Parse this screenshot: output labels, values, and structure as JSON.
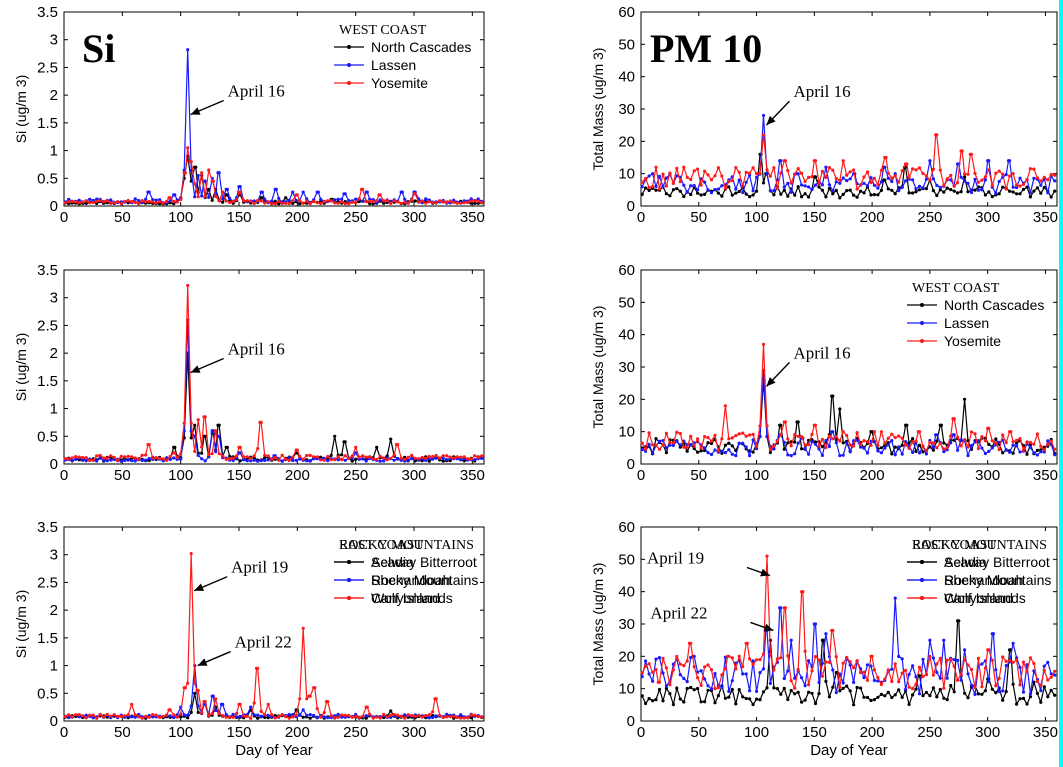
{
  "figure": {
    "big_labels": [
      "Si",
      "PM 10"
    ],
    "colors": {
      "black": "#000000",
      "blue": "#1a1aff",
      "red": "#ff1a1a",
      "arrow": "#000000"
    }
  },
  "chart_data": [
    {
      "type": "line",
      "big_label": "Si",
      "legend_title": "WEST COAST",
      "ylabel": "Si (ug/m 3)",
      "xlabel": "",
      "xlim": [
        0,
        360
      ],
      "ylim": [
        0,
        3.5
      ],
      "xticks": [
        0,
        50,
        100,
        150,
        200,
        250,
        300,
        350
      ],
      "yticks": [
        0,
        0.5,
        1,
        1.5,
        2,
        2.5,
        3,
        3.5
      ],
      "annotations": [
        {
          "text": "April 16",
          "x": 106,
          "y": 1.65
        }
      ],
      "series": [
        {
          "name": "North Cascades",
          "color": "#000000",
          "base": 0.04,
          "noise": 0.05,
          "peaks": [
            [
              103,
              0.5
            ],
            [
              106,
              0.9
            ],
            [
              109,
              0.45
            ],
            [
              113,
              0.7
            ],
            [
              118,
              0.55
            ],
            [
              124,
              0.3
            ],
            [
              130,
              0.3
            ],
            [
              140,
              0.2
            ],
            [
              150,
              0.2
            ],
            [
              170,
              0.15
            ],
            [
              190,
              0.15
            ],
            [
              230,
              0.12
            ]
          ]
        },
        {
          "name": "Lassen",
          "color": "#1a1aff",
          "base": 0.05,
          "noise": 0.08,
          "peaks": [
            [
              72,
              0.25
            ],
            [
              95,
              0.2
            ],
            [
              106,
              2.82
            ],
            [
              109,
              0.5
            ],
            [
              115,
              0.55
            ],
            [
              120,
              0.45
            ],
            [
              127,
              0.5
            ],
            [
              132,
              0.6
            ],
            [
              140,
              0.3
            ],
            [
              150,
              0.35
            ],
            [
              170,
              0.25
            ],
            [
              182,
              0.3
            ],
            [
              196,
              0.25
            ],
            [
              205,
              0.25
            ],
            [
              218,
              0.25
            ],
            [
              240,
              0.22
            ],
            [
              260,
              0.25
            ],
            [
              290,
              0.25
            ],
            [
              300,
              0.25
            ]
          ]
        },
        {
          "name": "Yosemite",
          "color": "#ff1a1a",
          "base": 0.04,
          "noise": 0.06,
          "peaks": [
            [
              90,
              0.15
            ],
            [
              104,
              0.6
            ],
            [
              106,
              1.05
            ],
            [
              108,
              0.8
            ],
            [
              112,
              0.4
            ],
            [
              118,
              0.6
            ],
            [
              124,
              0.65
            ],
            [
              128,
              0.45
            ],
            [
              136,
              0.25
            ],
            [
              150,
              0.25
            ],
            [
              200,
              0.2
            ],
            [
              255,
              0.3
            ],
            [
              270,
              0.2
            ],
            [
              300,
              0.22
            ]
          ]
        }
      ]
    },
    {
      "type": "line",
      "big_label": "PM 10",
      "legend_title": "WEST COAST",
      "ylabel": "Total Mass (ug/m 3)",
      "xlabel": "",
      "xlim": [
        0,
        360
      ],
      "ylim": [
        0,
        60
      ],
      "xticks": [
        0,
        50,
        100,
        150,
        200,
        250,
        300,
        350
      ],
      "yticks": [
        0,
        10,
        20,
        30,
        40,
        50,
        60
      ],
      "annotations": [
        {
          "text": "April 16",
          "x": 106,
          "y": 25
        }
      ],
      "series": [
        {
          "name": "North Cascades",
          "color": "#000000",
          "base": 2.5,
          "noise": 3.5,
          "peaks": [
            [
              104,
              16
            ],
            [
              108,
              10
            ],
            [
              150,
              9
            ],
            [
              210,
              8
            ],
            [
              228,
              12
            ],
            [
              250,
              8
            ],
            [
              280,
              9
            ]
          ]
        },
        {
          "name": "Lassen",
          "color": "#1a1aff",
          "base": 4,
          "noise": 6,
          "peaks": [
            [
              106,
              28
            ],
            [
              120,
              14
            ],
            [
              135,
              10
            ],
            [
              160,
              12
            ],
            [
              185,
              10
            ],
            [
              210,
              12
            ],
            [
              250,
              14
            ],
            [
              275,
              13
            ],
            [
              300,
              14
            ],
            [
              318,
              14
            ]
          ]
        },
        {
          "name": "Yosemite",
          "color": "#ff1a1a",
          "base": 5,
          "noise": 7,
          "peaks": [
            [
              37,
              12
            ],
            [
              100,
              10
            ],
            [
              106,
              22
            ],
            [
              125,
              14
            ],
            [
              150,
              14
            ],
            [
              175,
              14
            ],
            [
              212,
              15
            ],
            [
              230,
              13
            ],
            [
              255,
              22
            ],
            [
              278,
              17
            ],
            [
              285,
              16
            ]
          ]
        }
      ]
    },
    {
      "type": "line",
      "big_label": "",
      "legend_title": "ROCKY MOUNTAINS",
      "ylabel": "Si (ug/m 3)",
      "xlabel": "",
      "xlim": [
        0,
        360
      ],
      "ylim": [
        0,
        3.5
      ],
      "xticks": [
        0,
        50,
        100,
        150,
        200,
        250,
        300,
        350
      ],
      "yticks": [
        0,
        0.5,
        1,
        1.5,
        2,
        2.5,
        3,
        3.5
      ],
      "annotations": [
        {
          "text": "April 16",
          "x": 106,
          "y": 1.65
        }
      ],
      "series": [
        {
          "name": "Selway Bitterroot",
          "color": "#000000",
          "base": 0.05,
          "noise": 0.08,
          "peaks": [
            [
              95,
              0.3
            ],
            [
              106,
              2.0
            ],
            [
              112,
              0.7
            ],
            [
              120,
              0.5
            ],
            [
              128,
              0.55
            ],
            [
              132,
              0.7
            ],
            [
              140,
              0.3
            ],
            [
              200,
              0.2
            ],
            [
              232,
              0.5
            ],
            [
              240,
              0.4
            ],
            [
              268,
              0.3
            ],
            [
              280,
              0.45
            ]
          ]
        },
        {
          "name": "Rocky Mountains",
          "color": "#1a1aff",
          "base": 0.05,
          "noise": 0.06,
          "peaks": [
            [
              106,
              2.6
            ],
            [
              112,
              0.5
            ],
            [
              128,
              0.6
            ],
            [
              132,
              0.5
            ],
            [
              150,
              0.2
            ],
            [
              180,
              0.15
            ],
            [
              250,
              0.2
            ]
          ]
        },
        {
          "name": "Canyonlands",
          "color": "#ff1a1a",
          "base": 0.06,
          "noise": 0.1,
          "peaks": [
            [
              72,
              0.35
            ],
            [
              95,
              0.2
            ],
            [
              103,
              0.6
            ],
            [
              106,
              3.22
            ],
            [
              109,
              0.6
            ],
            [
              115,
              0.8
            ],
            [
              120,
              0.85
            ],
            [
              130,
              0.6
            ],
            [
              150,
              0.3
            ],
            [
              168,
              0.75
            ],
            [
              200,
              0.25
            ],
            [
              250,
              0.3
            ],
            [
              285,
              0.35
            ]
          ]
        }
      ]
    },
    {
      "type": "line",
      "big_label": "",
      "legend_title": "ROCKY MOUNTAINS",
      "ylabel": "Total Mass (ug/m 3)",
      "xlabel": "",
      "xlim": [
        0,
        360
      ],
      "ylim": [
        0,
        60
      ],
      "xticks": [
        0,
        50,
        100,
        150,
        200,
        250,
        300,
        350
      ],
      "yticks": [
        0,
        10,
        20,
        30,
        40,
        50,
        60
      ],
      "annotations": [
        {
          "text": "April 16",
          "x": 106,
          "y": 24
        }
      ],
      "series": [
        {
          "name": "Selway Bitterroot",
          "color": "#000000",
          "base": 3,
          "noise": 5,
          "peaks": [
            [
              106,
              26
            ],
            [
              120,
              12
            ],
            [
              135,
              13
            ],
            [
              165,
              21
            ],
            [
              172,
              17
            ],
            [
              200,
              10
            ],
            [
              230,
              12
            ],
            [
              260,
              12
            ],
            [
              280,
              20
            ],
            [
              295,
              8
            ]
          ]
        },
        {
          "name": "Rocky Mountains",
          "color": "#1a1aff",
          "base": 2.5,
          "noise": 5,
          "peaks": [
            [
              106,
              29
            ],
            [
              120,
              9
            ],
            [
              140,
              8
            ],
            [
              165,
              10
            ],
            [
              200,
              7
            ],
            [
              255,
              9
            ],
            [
              270,
              9
            ]
          ]
        },
        {
          "name": "Canyonlands",
          "color": "#ff1a1a",
          "base": 4,
          "noise": 6,
          "peaks": [
            [
              73,
              18
            ],
            [
              106,
              37
            ],
            [
              125,
              13
            ],
            [
              150,
              12
            ],
            [
              175,
              10
            ],
            [
              240,
              10
            ],
            [
              270,
              14
            ],
            [
              300,
              11
            ],
            [
              320,
              10
            ]
          ]
        }
      ]
    },
    {
      "type": "line",
      "big_label": "",
      "legend_title": "EAST COAST",
      "ylabel": "Si (ug/m 3)",
      "xlabel": "Day of Year",
      "xlim": [
        0,
        360
      ],
      "ylim": [
        0,
        3.5
      ],
      "xticks": [
        0,
        50,
        100,
        150,
        200,
        250,
        300,
        350
      ],
      "yticks": [
        0,
        0.5,
        1,
        1.5,
        2,
        2.5,
        3,
        3.5
      ],
      "annotations": [
        {
          "text": "April 19",
          "x": 109,
          "y": 2.35
        },
        {
          "text": "April 22",
          "x": 112,
          "y": 1.0
        }
      ],
      "series": [
        {
          "name": "Acadia",
          "color": "#000000",
          "base": 0.05,
          "noise": 0.05,
          "peaks": [
            [
              112,
              0.5
            ],
            [
              120,
              0.3
            ],
            [
              130,
              0.25
            ],
            [
              160,
              0.2
            ],
            [
              200,
              0.2
            ],
            [
              280,
              0.18
            ]
          ]
        },
        {
          "name": "Shenandoah",
          "color": "#1a1aff",
          "base": 0.06,
          "noise": 0.06,
          "peaks": [
            [
              100,
              0.25
            ],
            [
              112,
              1.0
            ],
            [
              120,
              0.3
            ],
            [
              128,
              0.45
            ],
            [
              135,
              0.3
            ],
            [
              160,
              0.25
            ],
            [
              205,
              0.2
            ]
          ]
        },
        {
          "name": "Wolf Island",
          "color": "#ff1a1a",
          "base": 0.05,
          "noise": 0.07,
          "peaks": [
            [
              58,
              0.3
            ],
            [
              90,
              0.2
            ],
            [
              104,
              0.6
            ],
            [
              109,
              3.02
            ],
            [
              114,
              0.55
            ],
            [
              120,
              0.35
            ],
            [
              130,
              0.4
            ],
            [
              150,
              0.3
            ],
            [
              165,
              0.95
            ],
            [
              175,
              0.3
            ],
            [
              205,
              1.67
            ],
            [
              210,
              0.45
            ],
            [
              215,
              0.6
            ],
            [
              225,
              0.35
            ],
            [
              260,
              0.25
            ],
            [
              318,
              0.4
            ]
          ]
        }
      ]
    },
    {
      "type": "line",
      "big_label": "",
      "legend_title": "EAST COAST",
      "ylabel": "Total Mass (ug/m 3)",
      "xlabel": "Day of Year",
      "xlim": [
        0,
        360
      ],
      "ylim": [
        0,
        60
      ],
      "xticks": [
        0,
        50,
        100,
        150,
        200,
        250,
        300,
        350
      ],
      "yticks": [
        0,
        10,
        20,
        30,
        40,
        50,
        60
      ],
      "annotations": [
        {
          "text": "April 19",
          "x": 109,
          "y": 45
        },
        {
          "text": "April 22",
          "x": 112,
          "y": 28
        }
      ],
      "series": [
        {
          "name": "Acadia",
          "color": "#000000",
          "base": 5,
          "noise": 6,
          "peaks": [
            [
              112,
              25
            ],
            [
              158,
              25
            ],
            [
              170,
              15
            ],
            [
              240,
              14
            ],
            [
              275,
              31
            ],
            [
              300,
              13
            ],
            [
              320,
              22
            ],
            [
              340,
              12
            ]
          ]
        },
        {
          "name": "Shenandoah",
          "color": "#1a1aff",
          "base": 8,
          "noise": 12,
          "peaks": [
            [
              45,
              20
            ],
            [
              108,
              28
            ],
            [
              120,
              35
            ],
            [
              130,
              25
            ],
            [
              150,
              30
            ],
            [
              160,
              27
            ],
            [
              220,
              38
            ],
            [
              250,
              25
            ],
            [
              262,
              25
            ],
            [
              280,
              22
            ],
            [
              305,
              27
            ],
            [
              322,
              24
            ]
          ]
        },
        {
          "name": "Wolf Island",
          "color": "#ff1a1a",
          "base": 10,
          "noise": 10,
          "peaks": [
            [
              15,
              12
            ],
            [
              42,
              24
            ],
            [
              75,
              20
            ],
            [
              92,
              24
            ],
            [
              109,
              51
            ],
            [
              125,
              35
            ],
            [
              140,
              40
            ],
            [
              165,
              28
            ],
            [
              200,
              20
            ],
            [
              250,
              20
            ],
            [
              300,
              22
            ]
          ]
        }
      ]
    }
  ]
}
